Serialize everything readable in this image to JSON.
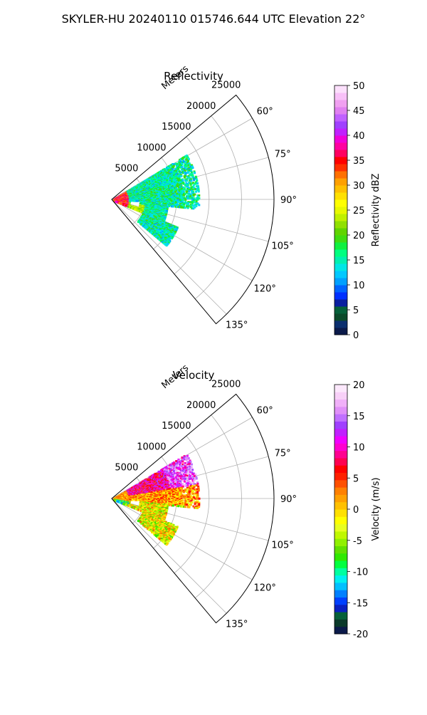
{
  "figure": {
    "suptitle": "SKYLER-HU  20240110  015746.644 UTC Elevation 22°"
  },
  "chart_data": [
    {
      "type": "heatmap",
      "projection": "polar-sector",
      "title": "Reflectivity",
      "radial_axis": {
        "label": "Meters",
        "ticks": [
          5000,
          10000,
          15000,
          20000,
          25000
        ],
        "tick_labels": [
          "5000",
          "10000",
          "15000",
          "20000",
          "25000"
        ],
        "range": [
          0,
          25000
        ]
      },
      "angular_axis": {
        "ticks_deg": [
          60,
          75,
          90,
          105,
          120,
          135
        ],
        "tick_labels": [
          "60°",
          "75°",
          "90°",
          "105°",
          "120°",
          "135°"
        ],
        "range_deg": [
          50,
          140
        ]
      },
      "grid": true,
      "colorbar": {
        "label": "Reflectivity dBZ",
        "range": [
          0,
          50
        ],
        "ticks": [
          0,
          5,
          10,
          15,
          20,
          25,
          30,
          35,
          40,
          45,
          50
        ],
        "tick_labels": [
          "0",
          "5",
          "10",
          "15",
          "20",
          "25",
          "30",
          "35",
          "40",
          "45",
          "50"
        ],
        "colors": [
          "#0b1a4a",
          "#0b2f6e",
          "#0b4a2a",
          "#06603a",
          "#0a1fa0",
          "#0030ff",
          "#0064ff",
          "#00a0ff",
          "#00c8ff",
          "#00e6e6",
          "#00f0b0",
          "#00ff80",
          "#10f040",
          "#40dc10",
          "#60d400",
          "#90e000",
          "#c0f000",
          "#e8f800",
          "#ffff00",
          "#ffe000",
          "#ffc000",
          "#ffa000",
          "#ff7000",
          "#ff3000",
          "#ff0000",
          "#ff0060",
          "#ff00a0",
          "#f000d8",
          "#c020ff",
          "#a040ff",
          "#c060ff",
          "#e080f0",
          "#f0a0f0",
          "#f8c0f8",
          "#fce0fc"
        ]
      },
      "echo_summary": {
        "dominant_range_dbz": [
          10,
          20
        ],
        "near_radar_max_dbz": 40
      }
    },
    {
      "type": "heatmap",
      "projection": "polar-sector",
      "title": "Velocity",
      "radial_axis": {
        "label": "Meters",
        "ticks": [
          5000,
          10000,
          15000,
          20000,
          25000
        ],
        "tick_labels": [
          "5000",
          "10000",
          "15000",
          "20000",
          "25000"
        ],
        "range": [
          0,
          25000
        ]
      },
      "angular_axis": {
        "ticks_deg": [
          60,
          75,
          90,
          105,
          120,
          135
        ],
        "tick_labels": [
          "60°",
          "75°",
          "90°",
          "105°",
          "120°",
          "135°"
        ],
        "range_deg": [
          50,
          140
        ]
      },
      "grid": true,
      "colorbar": {
        "label": "Velocity (m/s)",
        "range": [
          -20,
          20
        ],
        "ticks": [
          -20,
          -15,
          -10,
          -5,
          0,
          5,
          10,
          15,
          20
        ],
        "tick_labels": [
          "-20",
          "-15",
          "-10",
          "-5",
          "0",
          "5",
          "10",
          "15",
          "20"
        ],
        "colors": [
          "#0b1a4a",
          "#0b3a2a",
          "#06603a",
          "#0a20c0",
          "#0040ff",
          "#0080ff",
          "#00c0ff",
          "#00f0f0",
          "#00ffa0",
          "#00ff40",
          "#30e800",
          "#60e000",
          "#90f000",
          "#c0f800",
          "#e8ff20",
          "#ffff00",
          "#ffe000",
          "#ffc000",
          "#ffa000",
          "#ff8000",
          "#ff5000",
          "#ff2000",
          "#ff0000",
          "#ff0050",
          "#ff0090",
          "#ff00d0",
          "#f000ff",
          "#c020ff",
          "#a040ff",
          "#c070ff",
          "#e090f8",
          "#f0b0f8",
          "#f8d0f8",
          "#fce8fc"
        ]
      },
      "echo_summary": {
        "dominant_range_ms": [
          0,
          12
        ],
        "near_radar_min_ms": -15
      }
    }
  ]
}
